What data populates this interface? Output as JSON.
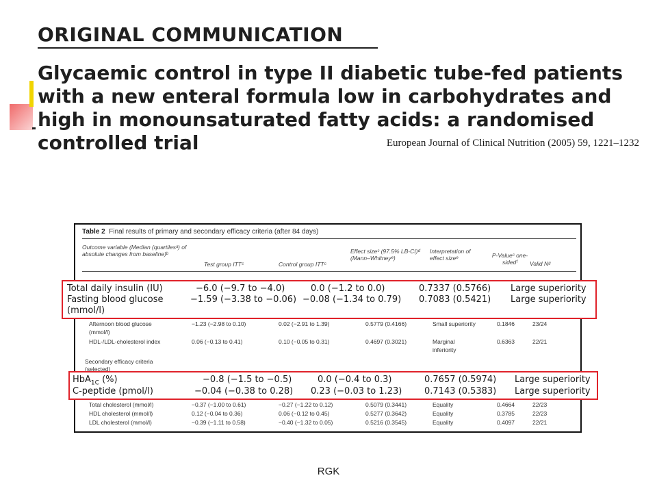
{
  "slide": {
    "section_label": "ORIGINAL COMMUNICATION",
    "title_lines": [
      "Glycaemic control in type II diabetic tube-fed patients",
      "with a new enteral formula low in carbohydrates and",
      "high in monounsaturated fatty acids: a randomised",
      "controlled trial"
    ],
    "citation": "European Journal of Clinical Nutrition (2005) 59, 1221–1232",
    "footer": "RGK"
  },
  "table": {
    "caption_label": "Table 2",
    "caption_text": "Final results of primary and secondary efficacy criteria (after 84 days)",
    "headers": {
      "outcome": "Outcome variable (Median (quartilesᵃ) of absolute changes from baseline)ᵇ",
      "test": "Test group ITTᶜ",
      "control": "Control group ITTᶜ",
      "effect": "Effect sizeᶜ (97.5% LB-CI)ᵈ (Mann–Whitneyᵉ)",
      "interp": "Interpretation of effect sizeᵉ",
      "pvalue": "P-Valueᶜ one-sidedᶠ",
      "validn": "Valid Nᵍ"
    },
    "primary_rows": [
      {
        "name_line1": "Afternoon blood glucose",
        "name_line2": "(mmol/l)",
        "test": "−1.23 (−2.98 to 0.10)",
        "control": "0.02 (−2.91 to 1.39)",
        "effect": "0.5779 (0.4166)",
        "interp_line1": "Small superiority",
        "interp_line2": "",
        "p": "0.1846",
        "n": "23/24"
      },
      {
        "name_line1": "HDL-/LDL-cholesterol index",
        "name_line2": "",
        "test": "0.06 (−0.13 to 0.41)",
        "control": "0.10 (−0.05 to 0.31)",
        "effect": "0.4697 (0.3021)",
        "interp_line1": "Marginal",
        "interp_line2": "inferiority",
        "p": "0.6363",
        "n": "22/21"
      }
    ],
    "secondary_heading_line1": "Secondary efficacy criteria",
    "secondary_heading_line2": "(selected)",
    "secondary_rows": [
      {
        "name": "Total cholesterol (mmol/l)",
        "test": "−0.37 (−1.00 to 0.61)",
        "control": "−0.27 (−1.22 to 0.12)",
        "effect": "0.5079 (0.3441)",
        "interp": "Equality",
        "p": "0.4664",
        "n": "22/23"
      },
      {
        "name": "HDL cholesterol (mmol/l)",
        "test": "0.12 (−0.04 to 0.36)",
        "control": "0.06 (−0.12 to 0.45)",
        "effect": "0.5277 (0.3642)",
        "interp": "Equality",
        "p": "0.3785",
        "n": "22/23"
      },
      {
        "name": "LDL cholesterol (mmol/l)",
        "test": "−0.39 (−1.11 to 0.58)",
        "control": "−0.40 (−1.32 to 0.05)",
        "effect": "0.5216 (0.3545)",
        "interp": "Equality",
        "p": "0.4097",
        "n": "22/21"
      }
    ]
  },
  "highlight_1": {
    "border_color": "#e0222a",
    "rows": [
      {
        "name": "Total daily insulin (IU)",
        "test": "−6.0 (−9.7 to −4.0)",
        "control": "0.0 (−1.2 to 0.0)",
        "effect": "0.7337 (0.5766)",
        "interp": "Large superiority"
      },
      {
        "name": "Fasting blood glucose",
        "name_line2": "(mmol/l)",
        "test": "−1.59 (−3.38 to −0.06)",
        "control": "−0.08 (−1.34 to 0.79)",
        "effect": "0.7083 (0.5421)",
        "interp": "Large superiority"
      }
    ]
  },
  "highlight_2": {
    "border_color": "#e0222a",
    "rows": [
      {
        "name_main": "HbA",
        "name_sub": "1C",
        "name_unit": " (%)",
        "test": "−0.8 (−1.5 to −0.5)",
        "control": "0.0 (−0.4 to 0.3)",
        "effect": "0.7657 (0.5974)",
        "interp": "Large superiority"
      },
      {
        "name": "C-peptide (pmol/l)",
        "test": "−0.04 (−0.38 to 0.28)",
        "control": "0.23 (−0.03 to 1.23)",
        "effect": "0.7143 (0.5383)",
        "interp": "Large superiority"
      }
    ]
  }
}
